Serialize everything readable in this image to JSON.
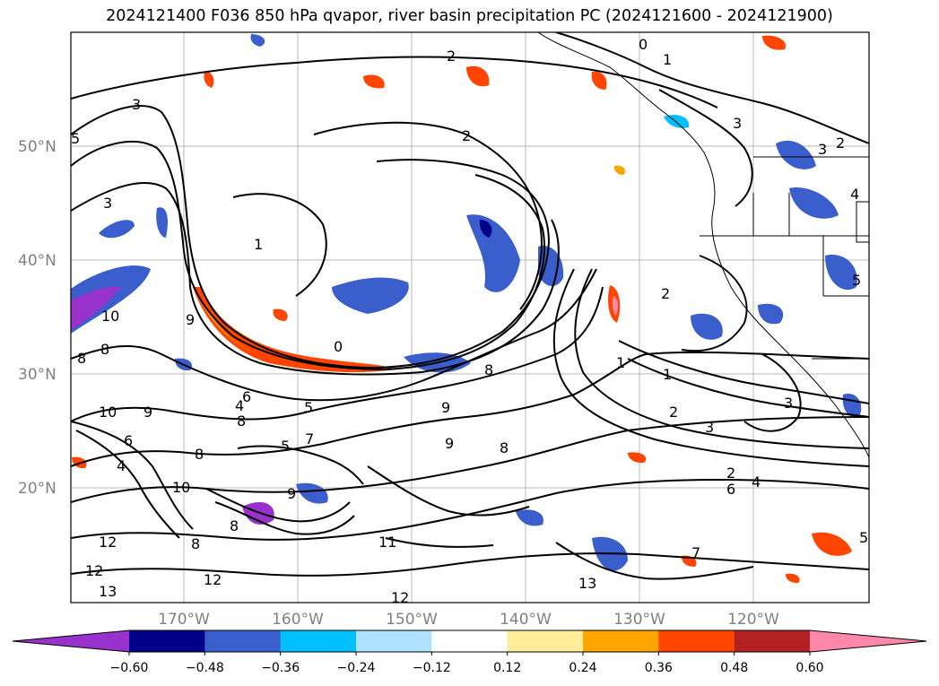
{
  "title": "2024121400 F036 850 hPa qvapor, river basin precipitation PC (2024121600 - 2024121900)",
  "map": {
    "lat_labels": [
      "50°N",
      "40°N",
      "30°N",
      "20°N"
    ],
    "lon_labels": [
      "170°W",
      "160°W",
      "150°W",
      "140°W",
      "130°W",
      "120°W"
    ],
    "contour_labels": [
      "2",
      "1",
      "0",
      "3",
      "2",
      "3",
      "3",
      "1",
      "0",
      "2",
      "1",
      "1",
      "5",
      "10",
      "8",
      "9",
      "8",
      "10",
      "9",
      "8",
      "6",
      "4",
      "5",
      "9",
      "8",
      "7",
      "6",
      "4",
      "5",
      "8",
      "8",
      "9",
      "9",
      "10",
      "12",
      "12",
      "13",
      "12",
      "13",
      "11",
      "8",
      "7",
      "12",
      "8",
      "6",
      "4",
      "2",
      "3",
      "2",
      "3",
      "5",
      "3",
      "2",
      "5",
      "4"
    ],
    "grid": true,
    "coastlines": true
  },
  "colorbar": {
    "ticks": [
      "−0.60",
      "−0.48",
      "−0.36",
      "−0.24",
      "−0.12",
      "0.12",
      "0.24",
      "0.36",
      "0.48",
      "0.60"
    ],
    "colors": [
      "#9932cc",
      "#00008b",
      "#3a5fcd",
      "#00bfff",
      "#b0e2ff",
      "#ffffff",
      "#ffee99",
      "#ffa500",
      "#ff4500",
      "#b22222",
      "#ff88aa"
    ],
    "extend": "both"
  }
}
